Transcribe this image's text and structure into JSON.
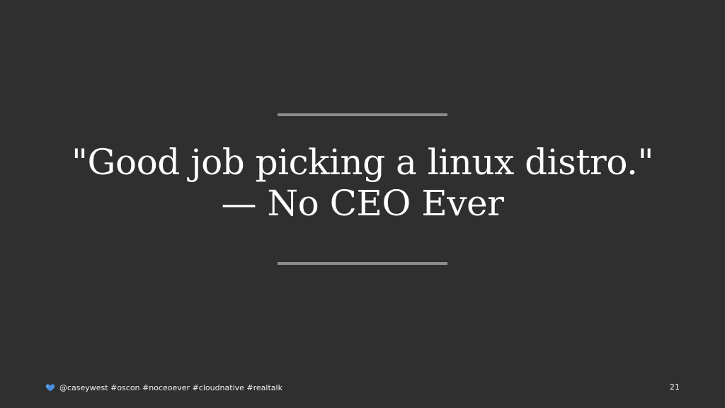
{
  "slide": {
    "quote_line_1": "\"Good job picking a linux distro.\"",
    "quote_line_2": "— No CEO Ever"
  },
  "footer": {
    "icon": "blue-heart-icon",
    "text": "@caseywest #oscon #noceoever #cloudnative #realtalk",
    "page_number": "21"
  },
  "colors": {
    "background": "#2f2f2f",
    "rule": "#8c8c8c",
    "text": "#ffffff",
    "heart": "#4a90e2"
  }
}
